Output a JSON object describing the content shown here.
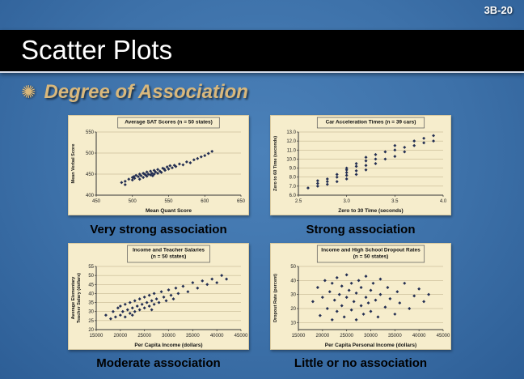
{
  "slide": {
    "page_number": "3B-20",
    "title": "Scatter Plots",
    "bullet_marker": "✺",
    "bullet_text": "Degree of Association"
  },
  "colors": {
    "background_center": "#4b81b9",
    "background_edge": "#2d5e96",
    "banner": "#000000",
    "title_text": "#ffffff",
    "bullet_text": "#d9b87c",
    "panel_background": "#f6edcc",
    "point": "#232e52",
    "gridline": "#b9ab85",
    "caption_text": "#000000"
  },
  "chart_data": [
    {
      "type": "scatter",
      "title_lines": [
        "Average SAT Scores (n = 50 states)"
      ],
      "xlabel": "Mean Quant Score",
      "ylabel_lines": [
        "Mean Verbal Score"
      ],
      "xlim": [
        450,
        650
      ],
      "ylim": [
        400,
        550
      ],
      "xticks": [
        450,
        500,
        550,
        600,
        650
      ],
      "yticks": [
        400,
        450,
        500,
        550
      ],
      "grid": true,
      "caption": "Very strong association",
      "points": [
        [
          485,
          430
        ],
        [
          490,
          425
        ],
        [
          490,
          433
        ],
        [
          495,
          438
        ],
        [
          500,
          436
        ],
        [
          500,
          442
        ],
        [
          503,
          440
        ],
        [
          505,
          447
        ],
        [
          508,
          444
        ],
        [
          510,
          438
        ],
        [
          510,
          450
        ],
        [
          512,
          446
        ],
        [
          515,
          442
        ],
        [
          515,
          452
        ],
        [
          518,
          448
        ],
        [
          520,
          445
        ],
        [
          520,
          455
        ],
        [
          522,
          450
        ],
        [
          525,
          448
        ],
        [
          525,
          457
        ],
        [
          527,
          452
        ],
        [
          528,
          446
        ],
        [
          530,
          450
        ],
        [
          530,
          459
        ],
        [
          532,
          455
        ],
        [
          535,
          452
        ],
        [
          535,
          461
        ],
        [
          538,
          457
        ],
        [
          540,
          454
        ],
        [
          542,
          464
        ],
        [
          545,
          459
        ],
        [
          548,
          467
        ],
        [
          550,
          462
        ],
        [
          552,
          470
        ],
        [
          555,
          465
        ],
        [
          558,
          471
        ],
        [
          560,
          468
        ],
        [
          565,
          474
        ],
        [
          570,
          472
        ],
        [
          575,
          479
        ],
        [
          580,
          477
        ],
        [
          585,
          484
        ],
        [
          590,
          487
        ],
        [
          595,
          491
        ],
        [
          600,
          494
        ],
        [
          605,
          499
        ],
        [
          610,
          504
        ],
        [
          502,
          444
        ],
        [
          517,
          450
        ],
        [
          544,
          462
        ]
      ]
    },
    {
      "type": "scatter",
      "title_lines": [
        "Car Acceleration Times (n = 39 cars)"
      ],
      "xlabel": "Zero to 30 Time (seconds)",
      "ylabel_lines": [
        "Zero to 60 Time (seconds)"
      ],
      "xlim": [
        2.5,
        4.0
      ],
      "ylim": [
        6.0,
        13.0
      ],
      "xticks": [
        2.5,
        3.0,
        3.5,
        4.0
      ],
      "xtick_labels": [
        "2.5",
        "3.0",
        "3.5",
        "4.0"
      ],
      "yticks": [
        6,
        7,
        8,
        9,
        10,
        11,
        12,
        13
      ],
      "ytick_labels": [
        "6.0",
        "7.0",
        "8.0",
        "9.0",
        "10.0",
        "11.0",
        "12.0",
        "13.0"
      ],
      "grid": true,
      "caption": "Strong association",
      "points": [
        [
          2.6,
          6.8
        ],
        [
          2.7,
          7.0
        ],
        [
          2.7,
          7.3
        ],
        [
          2.7,
          7.6
        ],
        [
          2.8,
          7.2
        ],
        [
          2.8,
          7.5
        ],
        [
          2.8,
          7.8
        ],
        [
          2.9,
          7.5
        ],
        [
          2.9,
          8.0
        ],
        [
          2.9,
          8.3
        ],
        [
          3.0,
          7.8
        ],
        [
          3.0,
          8.2
        ],
        [
          3.0,
          8.5
        ],
        [
          3.0,
          8.8
        ],
        [
          3.0,
          9.0
        ],
        [
          3.1,
          8.3
        ],
        [
          3.1,
          8.7
        ],
        [
          3.1,
          9.2
        ],
        [
          3.1,
          9.5
        ],
        [
          3.2,
          8.8
        ],
        [
          3.2,
          9.3
        ],
        [
          3.2,
          9.8
        ],
        [
          3.2,
          10.2
        ],
        [
          3.3,
          9.5
        ],
        [
          3.3,
          10.0
        ],
        [
          3.3,
          10.5
        ],
        [
          3.4,
          10.0
        ],
        [
          3.4,
          10.8
        ],
        [
          3.5,
          10.3
        ],
        [
          3.5,
          11.0
        ],
        [
          3.5,
          11.5
        ],
        [
          3.6,
          10.8
        ],
        [
          3.6,
          11.3
        ],
        [
          3.7,
          11.5
        ],
        [
          3.7,
          12.0
        ],
        [
          3.8,
          11.8
        ],
        [
          3.8,
          12.3
        ],
        [
          3.9,
          12.0
        ],
        [
          3.9,
          12.6
        ]
      ]
    },
    {
      "type": "scatter",
      "title_lines": [
        "Income and Teacher Salaries",
        "(n = 50 states)"
      ],
      "xlabel": "Per Capita Income (dollars)",
      "ylabel_lines": [
        "Average Elementary",
        "Teacher Salary (dollars)"
      ],
      "xlim": [
        15000,
        45000
      ],
      "ylim": [
        20,
        55
      ],
      "xticks": [
        15000,
        20000,
        25000,
        30000,
        35000,
        40000,
        45000
      ],
      "yticks": [
        20,
        25,
        30,
        35,
        40,
        45,
        50,
        55
      ],
      "grid": true,
      "caption": "Moderate association",
      "points": [
        [
          17000,
          28
        ],
        [
          18000,
          26
        ],
        [
          18500,
          30
        ],
        [
          19000,
          27
        ],
        [
          19500,
          32
        ],
        [
          20000,
          28
        ],
        [
          20000,
          33
        ],
        [
          20500,
          30
        ],
        [
          21000,
          27
        ],
        [
          21000,
          34
        ],
        [
          21500,
          31
        ],
        [
          22000,
          29
        ],
        [
          22000,
          35
        ],
        [
          22500,
          32
        ],
        [
          23000,
          30
        ],
        [
          23000,
          36
        ],
        [
          23500,
          33
        ],
        [
          24000,
          31
        ],
        [
          24000,
          37
        ],
        [
          24500,
          34
        ],
        [
          25000,
          32
        ],
        [
          25000,
          38
        ],
        [
          25500,
          35
        ],
        [
          26000,
          33
        ],
        [
          26000,
          39
        ],
        [
          26500,
          36
        ],
        [
          27000,
          34
        ],
        [
          27000,
          40
        ],
        [
          27500,
          37
        ],
        [
          28000,
          35
        ],
        [
          28500,
          41
        ],
        [
          29000,
          38
        ],
        [
          29500,
          36
        ],
        [
          30000,
          42
        ],
        [
          30500,
          39
        ],
        [
          31000,
          37
        ],
        [
          31500,
          43
        ],
        [
          32000,
          40
        ],
        [
          33000,
          44
        ],
        [
          34000,
          41
        ],
        [
          35000,
          46
        ],
        [
          36000,
          43
        ],
        [
          37000,
          47
        ],
        [
          38000,
          45
        ],
        [
          39000,
          48
        ],
        [
          40000,
          46
        ],
        [
          41000,
          50
        ],
        [
          42000,
          48
        ],
        [
          22500,
          28
        ],
        [
          26500,
          31
        ]
      ]
    },
    {
      "type": "scatter",
      "title_lines": [
        "Income and High School Dropout Rates",
        "(n = 50 states)"
      ],
      "xlabel": "Per Capita Personal Income (dollars)",
      "ylabel_lines": [
        "Dropout Rate (percent)"
      ],
      "xlim": [
        15000,
        45000
      ],
      "ylim": [
        5,
        50
      ],
      "xticks": [
        15000,
        20000,
        25000,
        30000,
        35000,
        40000,
        45000
      ],
      "yticks": [
        10,
        20,
        30,
        40,
        50
      ],
      "grid": true,
      "caption": "Little or no association",
      "points": [
        [
          18000,
          25
        ],
        [
          19000,
          35
        ],
        [
          19500,
          15
        ],
        [
          20000,
          28
        ],
        [
          20500,
          40
        ],
        [
          21000,
          20
        ],
        [
          21500,
          32
        ],
        [
          22000,
          12
        ],
        [
          22000,
          38
        ],
        [
          22500,
          26
        ],
        [
          23000,
          18
        ],
        [
          23000,
          42
        ],
        [
          23500,
          30
        ],
        [
          24000,
          22
        ],
        [
          24000,
          36
        ],
        [
          24500,
          14
        ],
        [
          25000,
          28
        ],
        [
          25000,
          44
        ],
        [
          25500,
          33
        ],
        [
          26000,
          19
        ],
        [
          26000,
          38
        ],
        [
          26500,
          25
        ],
        [
          27000,
          31
        ],
        [
          27000,
          12
        ],
        [
          27500,
          40
        ],
        [
          28000,
          22
        ],
        [
          28000,
          35
        ],
        [
          28500,
          16
        ],
        [
          29000,
          28
        ],
        [
          29000,
          43
        ],
        [
          29500,
          24
        ],
        [
          30000,
          33
        ],
        [
          30000,
          18
        ],
        [
          30500,
          38
        ],
        [
          31000,
          26
        ],
        [
          31500,
          14
        ],
        [
          32000,
          30
        ],
        [
          32000,
          41
        ],
        [
          33000,
          21
        ],
        [
          33500,
          35
        ],
        [
          34000,
          27
        ],
        [
          35000,
          16
        ],
        [
          35500,
          32
        ],
        [
          36000,
          24
        ],
        [
          37000,
          38
        ],
        [
          38000,
          20
        ],
        [
          39000,
          29
        ],
        [
          40000,
          34
        ],
        [
          41000,
          25
        ],
        [
          42000,
          30
        ]
      ]
    }
  ]
}
